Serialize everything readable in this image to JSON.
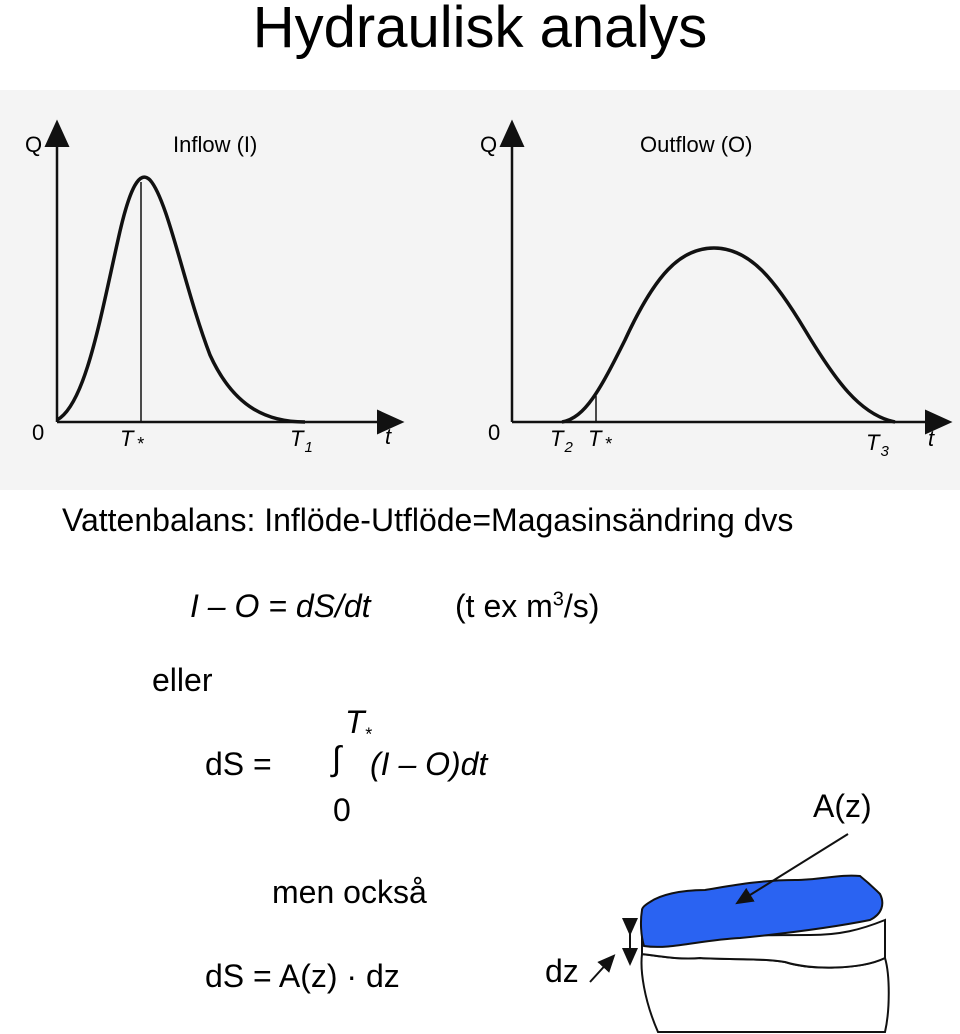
{
  "title": "Hydraulisk analys",
  "inflow_graph": {
    "y_axis": "Q",
    "title": "Inflow (I)",
    "origin": "0",
    "x_axis": "t",
    "tick_tstar": "T",
    "tick_tstar_sub": "*",
    "tick_t1": "T",
    "tick_t1_sub": "1"
  },
  "outflow_graph": {
    "y_axis": "Q",
    "title": "Outflow (O)",
    "origin": "0",
    "x_axis": "t",
    "tick_t2": "T",
    "tick_t2_sub": "2",
    "tick_tstar": "T",
    "tick_tstar_sub": "*",
    "tick_t3": "T",
    "tick_t3_sub": "3"
  },
  "balance_text": "Vattenbalans: Inflöde-Utflöde=Magasinsändring dvs",
  "eq1": {
    "lhs": "I – O = dS/dt",
    "unit_pre": "(t ex m",
    "unit_sup": "3",
    "unit_post": "/s)"
  },
  "eller": "eller",
  "eq2": {
    "lhs": "dS  =",
    "upper": "T",
    "upper_sub": "*",
    "integral": "∫",
    "integrand": "(I – O)dt",
    "lower": "0"
  },
  "men_ocksa": "men också",
  "eq3": "dS = A(z) · dz",
  "reservoir": {
    "area_label": "A(z)",
    "dz_label": "dz",
    "water_color": "#2a63f2"
  }
}
